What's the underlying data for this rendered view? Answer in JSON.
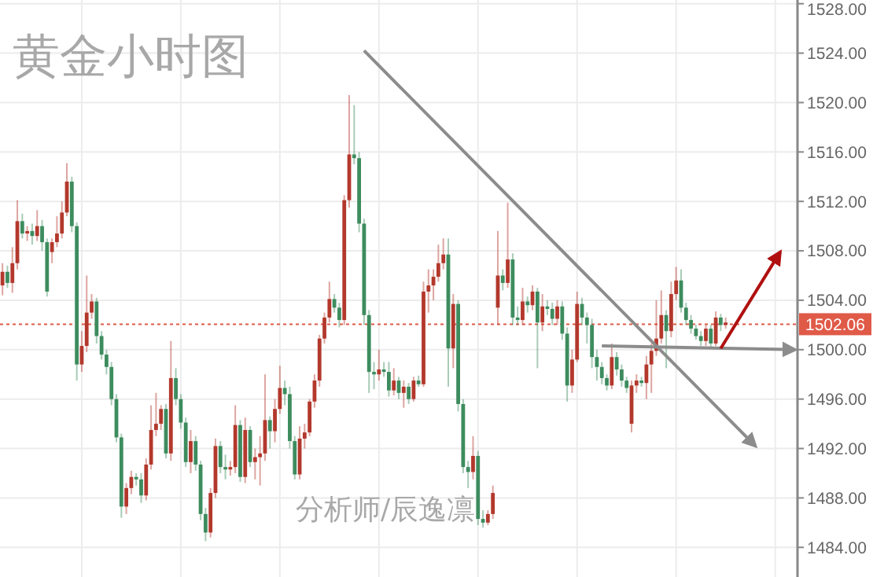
{
  "chart_data": {
    "type": "candlestick",
    "title": "黄金小时图",
    "annotations": [
      "分析师/辰逸凛"
    ],
    "categories": [
      null,
      null,
      null,
      null,
      null,
      null,
      null,
      null,
      null,
      null,
      null,
      null,
      null,
      null,
      null,
      null,
      null,
      null,
      null,
      null,
      null,
      null,
      null,
      null,
      null,
      null,
      null,
      null,
      null,
      null,
      null,
      null,
      null,
      null,
      null,
      null,
      null,
      null,
      null,
      null,
      null,
      null,
      null,
      null,
      null,
      null,
      null,
      null,
      null,
      null,
      null,
      null,
      null,
      null,
      null,
      null,
      null,
      null,
      null,
      null,
      null,
      null,
      null,
      null,
      null,
      null,
      null,
      null,
      null,
      null,
      null,
      null,
      null,
      null,
      null,
      null,
      null,
      null,
      null,
      null,
      null,
      null,
      null,
      null,
      null,
      null,
      null,
      null,
      null,
      null,
      null,
      null,
      null,
      null,
      null,
      null,
      null,
      null,
      null,
      null,
      null,
      null,
      null,
      null,
      null,
      null,
      null,
      null,
      null,
      null,
      null,
      null,
      null,
      null,
      null,
      null,
      null,
      null,
      null,
      null,
      null,
      null,
      null,
      null,
      null,
      null,
      null,
      null,
      null,
      null,
      null,
      null,
      null,
      null,
      null,
      null,
      null,
      null,
      null,
      null,
      null,
      null,
      null,
      null,
      null,
      null,
      null,
      null,
      null,
      null,
      null,
      null,
      null,
      null,
      null,
      null,
      null,
      null,
      null,
      null,
      null
    ],
    "ohlc": [
      [
        1505.2,
        1507.0,
        1504.4,
        1506.3
      ],
      [
        1506.3,
        1506.8,
        1505.0,
        1505.4
      ],
      [
        1505.4,
        1508.3,
        1504.6,
        1507.0
      ],
      [
        1507.0,
        1512.1,
        1506.5,
        1510.4
      ],
      [
        1510.4,
        1511.0,
        1509.0,
        1509.4
      ],
      [
        1509.4,
        1510.0,
        1508.8,
        1509.6
      ],
      [
        1509.6,
        1510.2,
        1508.5,
        1509.2
      ],
      [
        1509.2,
        1511.3,
        1508.8,
        1510.0
      ],
      [
        1510.0,
        1510.5,
        1508.0,
        1508.7
      ],
      [
        1508.7,
        1509.0,
        1504.3,
        1504.7
      ],
      [
        1507.9,
        1509.0,
        1507.0,
        1508.7
      ],
      [
        1508.7,
        1510.8,
        1508.3,
        1509.4
      ],
      [
        1509.4,
        1512.0,
        1509.0,
        1511.1
      ],
      [
        1511.1,
        1515.1,
        1510.8,
        1513.6
      ],
      [
        1513.6,
        1514.0,
        1509.5,
        1510.0
      ],
      [
        1510.0,
        1510.3,
        1497.5,
        1498.8
      ],
      [
        1498.8,
        1501.5,
        1498.2,
        1500.3
      ],
      [
        1500.3,
        1506.0,
        1499.8,
        1503.0
      ],
      [
        1503.0,
        1504.5,
        1502.5,
        1503.9
      ],
      [
        1503.9,
        1504.2,
        1500.5,
        1501.1
      ],
      [
        1501.1,
        1501.5,
        1499.2,
        1499.6
      ],
      [
        1499.6,
        1500.0,
        1498.0,
        1498.6
      ],
      [
        1498.6,
        1499.0,
        1495.5,
        1496.0
      ],
      [
        1496.0,
        1496.4,
        1492.5,
        1492.9
      ],
      [
        1492.9,
        1493.2,
        1486.4,
        1487.3
      ],
      [
        1487.3,
        1489.2,
        1486.7,
        1488.8
      ],
      [
        1488.8,
        1490.2,
        1488.3,
        1489.7
      ],
      [
        1489.7,
        1490.0,
        1489.0,
        1489.5
      ],
      [
        1489.5,
        1490.0,
        1487.6,
        1488.2
      ],
      [
        1488.2,
        1491.2,
        1487.8,
        1490.7
      ],
      [
        1490.7,
        1495.5,
        1490.3,
        1493.5
      ],
      [
        1493.5,
        1496.5,
        1493.0,
        1494.0
      ],
      [
        1494.0,
        1495.5,
        1493.5,
        1495.2
      ],
      [
        1495.2,
        1495.6,
        1491.2,
        1491.6
      ],
      [
        1491.6,
        1500.7,
        1491.0,
        1497.7
      ],
      [
        1497.7,
        1498.5,
        1495.5,
        1496.0
      ],
      [
        1496.0,
        1496.4,
        1493.6,
        1494.1
      ],
      [
        1494.1,
        1494.5,
        1490.5,
        1490.9
      ],
      [
        1490.9,
        1493.5,
        1490.0,
        1492.6
      ],
      [
        1492.6,
        1493.0,
        1490.2,
        1490.7
      ],
      [
        1490.7,
        1491.0,
        1486.2,
        1486.7
      ],
      [
        1486.7,
        1487.2,
        1484.5,
        1485.2
      ],
      [
        1485.2,
        1488.8,
        1484.8,
        1488.4
      ],
      [
        1488.4,
        1492.8,
        1488.0,
        1492.2
      ],
      [
        1492.2,
        1492.6,
        1490.0,
        1490.5
      ],
      [
        1490.5,
        1491.5,
        1489.5,
        1490.3
      ],
      [
        1490.3,
        1491.0,
        1489.8,
        1490.5
      ],
      [
        1490.5,
        1495.5,
        1490.0,
        1493.9
      ],
      [
        1493.9,
        1494.3,
        1489.3,
        1489.7
      ],
      [
        1489.7,
        1494.5,
        1489.2,
        1493.5
      ],
      [
        1493.5,
        1493.8,
        1490.5,
        1490.9
      ],
      [
        1490.9,
        1492.0,
        1489.5,
        1491.3
      ],
      [
        1491.3,
        1493.0,
        1489.0,
        1491.6
      ],
      [
        1491.6,
        1498.0,
        1491.0,
        1494.3
      ],
      [
        1494.3,
        1494.6,
        1492.0,
        1493.4
      ],
      [
        1493.4,
        1496.0,
        1492.5,
        1495.2
      ],
      [
        1495.2,
        1498.7,
        1494.8,
        1496.9
      ],
      [
        1496.9,
        1497.5,
        1495.5,
        1496.4
      ],
      [
        1496.4,
        1497.0,
        1492.0,
        1492.6
      ],
      [
        1492.6,
        1493.0,
        1489.5,
        1489.9
      ],
      [
        1489.9,
        1493.8,
        1489.5,
        1492.8
      ],
      [
        1492.8,
        1494.0,
        1492.0,
        1493.3
      ],
      [
        1493.3,
        1496.0,
        1493.0,
        1495.8
      ],
      [
        1495.8,
        1498.0,
        1495.3,
        1497.5
      ],
      [
        1497.5,
        1501.2,
        1497.0,
        1500.9
      ],
      [
        1500.9,
        1503.0,
        1500.5,
        1502.6
      ],
      [
        1502.6,
        1505.5,
        1502.2,
        1504.1
      ],
      [
        1504.1,
        1504.5,
        1503.0,
        1503.4
      ],
      [
        1503.4,
        1503.8,
        1501.8,
        1502.4
      ],
      [
        1502.4,
        1512.5,
        1502.0,
        1512.1
      ],
      [
        1512.1,
        1520.6,
        1511.5,
        1515.8
      ],
      [
        1515.8,
        1519.8,
        1515.0,
        1515.5
      ],
      [
        1515.5,
        1516.0,
        1509.5,
        1510.2
      ],
      [
        1510.2,
        1510.6,
        1502.0,
        1502.8
      ],
      [
        1502.8,
        1503.2,
        1496.5,
        1498.2
      ],
      [
        1498.2,
        1499.0,
        1496.8,
        1498.0
      ],
      [
        1498.0,
        1500.0,
        1497.5,
        1498.4
      ],
      [
        1498.4,
        1499.0,
        1497.8,
        1498.2
      ],
      [
        1498.2,
        1499.0,
        1496.2,
        1496.7
      ],
      [
        1496.7,
        1498.5,
        1496.3,
        1497.5
      ],
      [
        1497.5,
        1497.8,
        1496.0,
        1496.5
      ],
      [
        1496.5,
        1497.5,
        1495.3,
        1497.0
      ],
      [
        1497.0,
        1497.3,
        1495.6,
        1496.0
      ],
      [
        1496.0,
        1497.8,
        1495.8,
        1497.5
      ],
      [
        1497.5,
        1497.9,
        1497.0,
        1497.2
      ],
      [
        1497.2,
        1505.5,
        1497.0,
        1504.7
      ],
      [
        1504.7,
        1506.5,
        1503.0,
        1505.2
      ],
      [
        1505.2,
        1506.5,
        1504.0,
        1505.9
      ],
      [
        1505.9,
        1508.5,
        1505.5,
        1507.0
      ],
      [
        1507.0,
        1509.0,
        1506.5,
        1507.7
      ],
      [
        1507.7,
        1509.0,
        1497.0,
        1500.1
      ],
      [
        1500.1,
        1504.5,
        1498.5,
        1503.7
      ],
      [
        1503.7,
        1504.0,
        1495.0,
        1495.6
      ],
      [
        1495.6,
        1496.0,
        1490.0,
        1490.5
      ],
      [
        1490.5,
        1491.0,
        1488.8,
        1490.1
      ],
      [
        1490.1,
        1493.0,
        1489.5,
        1491.4
      ],
      [
        1491.4,
        1491.8,
        1485.8,
        1486.3
      ],
      [
        1486.3,
        1487.0,
        1485.6,
        1486.0
      ],
      [
        1486.0,
        1487.0,
        1485.8,
        1486.7
      ],
      [
        1486.7,
        1489.0,
        1486.3,
        1488.4
      ],
      [
        1503.4,
        1509.6,
        1502.0,
        1506.0
      ],
      [
        1506.0,
        1506.5,
        1504.8,
        1505.4
      ],
      [
        1505.4,
        1511.9,
        1505.0,
        1507.3
      ],
      [
        1507.3,
        1507.8,
        1502.0,
        1502.6
      ],
      [
        1502.6,
        1503.5,
        1502.0,
        1502.4
      ],
      [
        1502.4,
        1505.0,
        1502.0,
        1503.9
      ],
      [
        1503.9,
        1504.3,
        1503.0,
        1503.6
      ],
      [
        1503.6,
        1505.2,
        1503.2,
        1504.7
      ],
      [
        1504.7,
        1505.0,
        1498.5,
        1502.2
      ],
      [
        1502.2,
        1504.5,
        1501.5,
        1503.5
      ],
      [
        1503.5,
        1504.0,
        1502.8,
        1503.3
      ],
      [
        1503.3,
        1503.8,
        1502.0,
        1502.5
      ],
      [
        1502.5,
        1504.0,
        1502.0,
        1503.5
      ],
      [
        1503.5,
        1503.9,
        1500.8,
        1501.3
      ],
      [
        1501.3,
        1501.8,
        1495.8,
        1497.1
      ],
      [
        1497.1,
        1500.0,
        1496.5,
        1499.2
      ],
      [
        1499.2,
        1504.7,
        1499.0,
        1503.7
      ],
      [
        1503.7,
        1504.2,
        1502.0,
        1502.6
      ],
      [
        1502.6,
        1503.0,
        1500.5,
        1502.0
      ],
      [
        1502.0,
        1502.5,
        1498.5,
        1499.4
      ],
      [
        1499.4,
        1500.0,
        1497.5,
        1498.6
      ],
      [
        1498.6,
        1499.0,
        1497.2,
        1497.7
      ],
      [
        1497.7,
        1498.0,
        1496.7,
        1497.1
      ],
      [
        1497.1,
        1500.5,
        1496.8,
        1499.4
      ],
      [
        1499.4,
        1499.8,
        1497.9,
        1498.4
      ],
      [
        1498.4,
        1498.8,
        1497.0,
        1497.5
      ],
      [
        1497.5,
        1497.8,
        1496.5,
        1496.9
      ],
      [
        1494.0,
        1497.5,
        1493.3,
        1497.1
      ],
      [
        1497.1,
        1498.0,
        1496.5,
        1497.5
      ],
      [
        1497.5,
        1497.8,
        1497.0,
        1497.3
      ],
      [
        1497.3,
        1499.5,
        1496.0,
        1498.8
      ],
      [
        1498.8,
        1500.5,
        1496.5,
        1499.9
      ],
      [
        1499.9,
        1504.0,
        1499.5,
        1500.9
      ],
      [
        1500.9,
        1504.8,
        1500.5,
        1502.8
      ],
      [
        1502.8,
        1503.2,
        1498.5,
        1501.5
      ],
      [
        1501.5,
        1505.5,
        1501.0,
        1504.5
      ],
      [
        1504.5,
        1506.7,
        1504.0,
        1505.6
      ],
      [
        1505.6,
        1506.5,
        1503.0,
        1503.4
      ],
      [
        1503.4,
        1503.8,
        1502.0,
        1502.4
      ],
      [
        1502.4,
        1502.8,
        1501.3,
        1501.7
      ],
      [
        1501.7,
        1502.0,
        1500.8,
        1501.1
      ],
      [
        1501.1,
        1501.5,
        1500.3,
        1500.7
      ],
      [
        1500.7,
        1502.0,
        1500.3,
        1501.7
      ],
      [
        1501.7,
        1502.0,
        1500.2,
        1500.5
      ],
      [
        1500.5,
        1503.1,
        1500.3,
        1502.6
      ],
      [
        1502.6,
        1502.9,
        1501.5,
        1502.0
      ],
      [
        1502.0,
        1502.6,
        1501.7,
        1502.2
      ],
      null,
      null,
      null,
      null,
      null,
      null,
      null,
      null,
      null,
      null,
      null,
      null,
      null,
      null
    ],
    "colors": [
      "#b3382c",
      "#3d8c5e",
      "#b3382c",
      "#b3382c",
      "#3d8c5e",
      "#b3382c",
      "#3d8c5e",
      "#b3382c",
      "#3d8c5e",
      "#3d8c5e",
      "#b3382c",
      "#b3382c",
      "#b3382c",
      "#b3382c",
      "#3d8c5e",
      "#3d8c5e",
      "#b3382c",
      "#b3382c",
      "#b3382c",
      "#3d8c5e",
      "#3d8c5e",
      "#3d8c5e",
      "#3d8c5e",
      "#3d8c5e",
      "#3d8c5e",
      "#b3382c",
      "#b3382c",
      "#3d8c5e",
      "#3d8c5e",
      "#b3382c",
      "#b3382c",
      "#b3382c",
      "#b3382c",
      "#3d8c5e",
      "#b3382c",
      "#3d8c5e",
      "#3d8c5e",
      "#3d8c5e",
      "#b3382c",
      "#3d8c5e",
      "#3d8c5e",
      "#3d8c5e",
      "#b3382c",
      "#b3382c",
      "#3d8c5e",
      "#3d8c5e",
      "#b3382c",
      "#b3382c",
      "#3d8c5e",
      "#b3382c",
      "#3d8c5e",
      "#b3382c",
      "#b3382c",
      "#b3382c",
      "#3d8c5e",
      "#b3382c",
      "#b3382c",
      "#3d8c5e",
      "#3d8c5e",
      "#3d8c5e",
      "#b3382c",
      "#b3382c",
      "#b3382c",
      "#b3382c",
      "#b3382c",
      "#b3382c",
      "#b3382c",
      "#3d8c5e",
      "#3d8c5e",
      "#b3382c",
      "#b3382c",
      "#3d8c5e",
      "#3d8c5e",
      "#3d8c5e",
      "#3d8c5e",
      "#3d8c5e",
      "#b3382c",
      "#3d8c5e",
      "#3d8c5e",
      "#b3382c",
      "#3d8c5e",
      "#b3382c",
      "#3d8c5e",
      "#b3382c",
      "#3d8c5e",
      "#b3382c",
      "#b3382c",
      "#b3382c",
      "#b3382c",
      "#b3382c",
      "#3d8c5e",
      "#b3382c",
      "#3d8c5e",
      "#3d8c5e",
      "#3d8c5e",
      "#b3382c",
      "#3d8c5e",
      "#3d8c5e",
      "#b3382c",
      "#b3382c",
      "#b3382c",
      "#3d8c5e",
      "#b3382c",
      "#3d8c5e",
      "#3d8c5e",
      "#b3382c",
      "#3d8c5e",
      "#b3382c",
      "#3d8c5e",
      "#b3382c",
      "#3d8c5e",
      "#3d8c5e",
      "#b3382c",
      "#3d8c5e",
      "#3d8c5e",
      "#b3382c",
      "#b3382c",
      "#3d8c5e",
      "#3d8c5e",
      "#3d8c5e",
      "#3d8c5e",
      "#3d8c5e",
      "#3d8c5e",
      "#b3382c",
      "#3d8c5e",
      "#3d8c5e",
      "#3d8c5e",
      "#b3382c",
      "#b3382c",
      "#3d8c5e",
      "#b3382c",
      "#b3382c",
      "#b3382c",
      "#b3382c",
      "#3d8c5e",
      "#b3382c",
      "#b3382c",
      "#3d8c5e",
      "#3d8c5e",
      "#3d8c5e",
      "#3d8c5e",
      "#3d8c5e",
      "#b3382c",
      "#3d8c5e",
      "#b3382c",
      "#3d8c5e",
      "#b3382c",
      null,
      null,
      null,
      null,
      null,
      null,
      null,
      null,
      null,
      null,
      null,
      null,
      null,
      null
    ],
    "series": [
      {
        "type": "line",
        "color": "#8c8c8c",
        "values": [
          null,
          null,
          null,
          null,
          null,
          null,
          null,
          null,
          null,
          null,
          null,
          null,
          null,
          null,
          null,
          null,
          null,
          null,
          null,
          null,
          null,
          null,
          null,
          null,
          null,
          null,
          null,
          null,
          null,
          null,
          null,
          null,
          null,
          null,
          null,
          null,
          null,
          null,
          null,
          null,
          null,
          null,
          null,
          null,
          null,
          null,
          null,
          null,
          null,
          null,
          null,
          null,
          null,
          null,
          null,
          null,
          null,
          null,
          null,
          null,
          null,
          null,
          null,
          null,
          null,
          null,
          null,
          null,
          null,
          null,
          null,
          null,
          null,
          1524.2,
          null,
          null,
          null,
          null,
          null,
          null,
          null,
          null,
          null,
          null,
          null,
          null,
          null,
          null,
          null,
          null,
          null,
          null,
          null,
          null,
          null,
          null,
          null,
          null,
          null,
          null,
          null,
          null,
          null,
          null,
          null,
          null,
          null,
          null,
          null,
          null,
          null,
          null,
          null,
          null,
          null,
          null,
          null,
          null,
          null,
          null,
          null,
          null,
          null,
          null,
          null,
          null,
          null,
          null,
          null,
          null,
          null,
          null,
          null,
          null,
          null,
          null,
          null,
          null,
          null,
          null,
          null,
          null,
          null,
          null,
          null,
          null,
          null,
          null,
          null,
          null,
          null,
          null,
          1492.2,
          null,
          null,
          null,
          null,
          null,
          null,
          null,
          null
        ]
      },
      {
        "type": "line",
        "color": "#8c8c8c",
        "values": [
          null,
          null,
          null,
          null,
          null,
          null,
          null,
          null,
          null,
          null,
          null,
          null,
          null,
          null,
          null,
          null,
          null,
          null,
          null,
          null,
          null,
          null,
          null,
          null,
          null,
          null,
          null,
          null,
          null,
          null,
          null,
          null,
          null,
          null,
          null,
          null,
          null,
          null,
          null,
          null,
          null,
          null,
          null,
          null,
          null,
          null,
          null,
          null,
          null,
          null,
          null,
          null,
          null,
          null,
          null,
          null,
          null,
          null,
          null,
          null,
          null,
          null,
          null,
          null,
          null,
          null,
          null,
          null,
          null,
          null,
          null,
          null,
          null,
          null,
          null,
          null,
          null,
          null,
          null,
          null,
          null,
          null,
          null,
          null,
          null,
          null,
          null,
          null,
          null,
          null,
          null,
          null,
          null,
          null,
          null,
          null,
          null,
          null,
          null,
          null,
          null,
          null,
          null,
          null,
          null,
          null,
          null,
          null,
          null,
          null,
          null,
          null,
          null,
          null,
          null,
          null,
          null,
          null,
          null,
          null,
          null,
          1500.3,
          null,
          null,
          null,
          null,
          null,
          null,
          null,
          null,
          null,
          null,
          null,
          null,
          null,
          null,
          null,
          null,
          null,
          null,
          null,
          null,
          null,
          null,
          null,
          null,
          null,
          null,
          null,
          null,
          null,
          null,
          null,
          null,
          null,
          null,
          null,
          null,
          null,
          null,
          1500.0
        ]
      },
      {
        "type": "line",
        "color": "#b01010",
        "values": [
          null,
          null,
          null,
          null,
          null,
          null,
          null,
          null,
          null,
          null,
          null,
          null,
          null,
          null,
          null,
          null,
          null,
          null,
          null,
          null,
          null,
          null,
          null,
          null,
          null,
          null,
          null,
          null,
          null,
          null,
          null,
          null,
          null,
          null,
          null,
          null,
          null,
          null,
          null,
          null,
          null,
          null,
          null,
          null,
          null,
          null,
          null,
          null,
          null,
          null,
          null,
          null,
          null,
          null,
          null,
          null,
          null,
          null,
          null,
          null,
          null,
          null,
          null,
          null,
          null,
          null,
          null,
          null,
          null,
          null,
          null,
          null,
          null,
          null,
          null,
          null,
          null,
          null,
          null,
          null,
          null,
          null,
          null,
          null,
          null,
          null,
          null,
          null,
          null,
          null,
          null,
          null,
          null,
          null,
          null,
          null,
          null,
          null,
          null,
          null,
          null,
          null,
          null,
          null,
          null,
          null,
          null,
          null,
          null,
          null,
          null,
          null,
          null,
          null,
          null,
          null,
          null,
          null,
          null,
          null,
          null,
          null,
          null,
          null,
          null,
          null,
          null,
          null,
          null,
          null,
          null,
          null,
          null,
          null,
          null,
          null,
          null,
          null,
          null,
          null,
          null,
          null,
          null,
          null,
          null,
          1500.1,
          null,
          null,
          null,
          null,
          null,
          null,
          null,
          null,
          null,
          null,
          null,
          1507.9,
          null,
          null,
          null
        ]
      }
    ],
    "ref_lines": [
      {
        "axis": "y",
        "value": 1502.06,
        "label": "1502.06",
        "color": "#e05a48",
        "line_style": "dotted"
      }
    ],
    "ylim": [
      1481.6,
      1528.3
    ],
    "yticks": [
      {
        "value": 1484,
        "label": "1484.00"
      },
      {
        "value": 1488,
        "label": "1488.00"
      },
      {
        "value": 1492,
        "label": "1492.00"
      },
      {
        "value": 1496,
        "label": "1496.00"
      },
      {
        "value": 1500,
        "label": "1500.00"
      },
      {
        "value": 1504,
        "label": "1504.00"
      },
      {
        "value": 1508,
        "label": "1508.00"
      },
      {
        "value": 1512,
        "label": "1512.00"
      },
      {
        "value": 1516,
        "label": "1516.00"
      },
      {
        "value": 1520,
        "label": "1520.00"
      },
      {
        "value": 1524,
        "label": "1524.00"
      },
      {
        "value": 1528,
        "label": "1528.00"
      }
    ],
    "grid": true
  }
}
